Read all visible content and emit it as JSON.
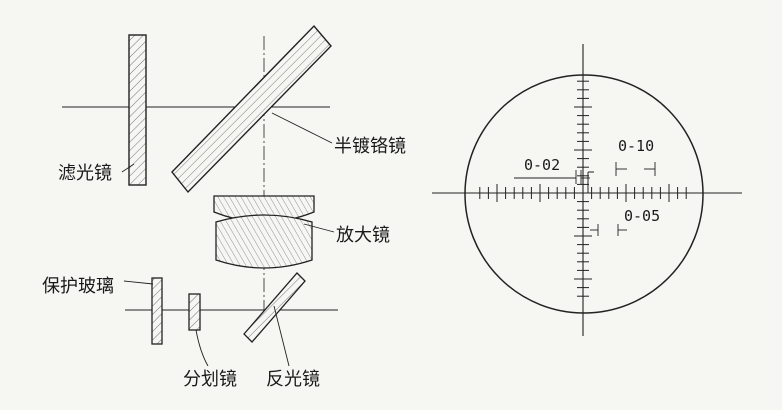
{
  "left_diagram": {
    "labels": {
      "filter": "滤光镜",
      "half_mirror": "半镀铬镜",
      "magnifier": "放大镜",
      "protective_glass": "保护玻璃",
      "reticle": "分划镜",
      "reflector": "反光镜"
    }
  },
  "right_diagram": {
    "labels": {
      "scale_002": "0-02",
      "scale_010": "0-10",
      "scale_005": "0-05"
    }
  }
}
